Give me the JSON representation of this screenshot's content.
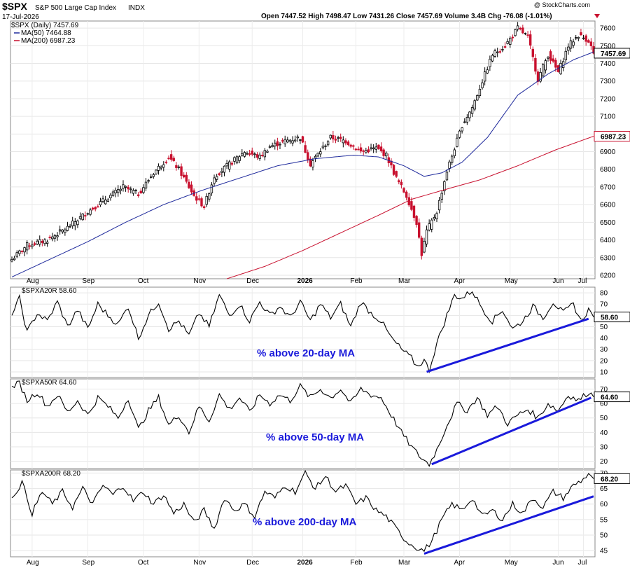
{
  "header": {
    "symbol": "$SPX",
    "name": "S&P 500 Large Cap Index",
    "exchange": "INDX",
    "date": "17-Jul-2026",
    "watermark": "@ StockCharts.com",
    "ohlc_text": "Open 7447.52  High 7498.47  Low 7431.26  Close 7457.69  Volume 3.4B  Chg -76.08 (-1.01%)"
  },
  "colors": {
    "up": "#000000",
    "down": "#c8102e",
    "ma50": "#1f2a9c",
    "ma200": "#c8102e",
    "trendline": "#1a1adb",
    "annotation": "#1a1adb"
  },
  "x_axis": {
    "labels": [
      "Aug",
      "Sep",
      "Oct",
      "Nov",
      "Dec",
      "2026",
      "Feb",
      "Mar",
      "Apr",
      "May",
      "Jun",
      "Jul"
    ]
  },
  "chart_data": [
    {
      "type": "candlestick",
      "panel": "price",
      "legend": [
        "$SPX (Daily) 7457.69",
        "MA(50) 7464.88",
        "MA(200) 6987.23"
      ],
      "last_value_labels": {
        "close": "7457.69",
        "ma200": "6987.23"
      },
      "ylim": [
        6180,
        7640
      ],
      "y_ticks": [
        6200,
        6300,
        6400,
        6500,
        6600,
        6700,
        6800,
        6900,
        7000,
        7100,
        7200,
        7300,
        7400,
        7500,
        7600
      ],
      "close_anchors": [
        [
          0,
          6290
        ],
        [
          6,
          6370
        ],
        [
          14,
          6400
        ],
        [
          22,
          6470
        ],
        [
          30,
          6560
        ],
        [
          38,
          6640
        ],
        [
          44,
          6700
        ],
        [
          50,
          6660
        ],
        [
          56,
          6780
        ],
        [
          62,
          6870
        ],
        [
          66,
          6800
        ],
        [
          72,
          6650
        ],
        [
          76,
          6590
        ],
        [
          80,
          6760
        ],
        [
          86,
          6830
        ],
        [
          92,
          6900
        ],
        [
          98,
          6870
        ],
        [
          102,
          6930
        ],
        [
          108,
          6960
        ],
        [
          114,
          6980
        ],
        [
          118,
          6830
        ],
        [
          126,
          6980
        ],
        [
          132,
          6960
        ],
        [
          138,
          6900
        ],
        [
          144,
          6920
        ],
        [
          148,
          6880
        ],
        [
          152,
          6750
        ],
        [
          156,
          6650
        ],
        [
          160,
          6500
        ],
        [
          162,
          6320
        ],
        [
          164,
          6450
        ],
        [
          168,
          6560
        ],
        [
          172,
          6790
        ],
        [
          178,
          7050
        ],
        [
          182,
          7150
        ],
        [
          186,
          7300
        ],
        [
          190,
          7450
        ],
        [
          195,
          7500
        ],
        [
          200,
          7600
        ],
        [
          204,
          7550
        ],
        [
          208,
          7310
        ],
        [
          212,
          7450
        ],
        [
          216,
          7350
        ],
        [
          220,
          7500
        ],
        [
          224,
          7560
        ],
        [
          228,
          7530
        ],
        [
          230,
          7457.69
        ]
      ],
      "ma50_anchors": [
        [
          0,
          6190
        ],
        [
          15,
          6290
        ],
        [
          30,
          6390
        ],
        [
          45,
          6500
        ],
        [
          60,
          6600
        ],
        [
          75,
          6680
        ],
        [
          90,
          6750
        ],
        [
          105,
          6820
        ],
        [
          120,
          6860
        ],
        [
          135,
          6880
        ],
        [
          145,
          6870
        ],
        [
          155,
          6820
        ],
        [
          163,
          6760
        ],
        [
          170,
          6780
        ],
        [
          178,
          6840
        ],
        [
          188,
          6980
        ],
        [
          200,
          7220
        ],
        [
          212,
          7340
        ],
        [
          222,
          7420
        ],
        [
          230,
          7464.88
        ]
      ],
      "ma200_anchors": [
        [
          85,
          6180
        ],
        [
          100,
          6250
        ],
        [
          115,
          6340
        ],
        [
          130,
          6440
        ],
        [
          145,
          6540
        ],
        [
          158,
          6630
        ],
        [
          170,
          6680
        ],
        [
          185,
          6740
        ],
        [
          200,
          6820
        ],
        [
          215,
          6910
        ],
        [
          230,
          6987.23
        ]
      ]
    },
    {
      "type": "line",
      "panel": "SPXA20R",
      "label": "$SPXA20R 58.60",
      "last_value": "58.60",
      "ylim": [
        5,
        85
      ],
      "y_ticks": [
        10,
        20,
        30,
        40,
        50,
        60,
        70,
        80
      ],
      "anchors": [
        [
          0,
          60
        ],
        [
          3,
          75
        ],
        [
          6,
          45
        ],
        [
          10,
          62
        ],
        [
          14,
          55
        ],
        [
          18,
          72
        ],
        [
          22,
          50
        ],
        [
          26,
          65
        ],
        [
          30,
          48
        ],
        [
          34,
          70
        ],
        [
          38,
          60
        ],
        [
          42,
          52
        ],
        [
          46,
          68
        ],
        [
          50,
          40
        ],
        [
          54,
          60
        ],
        [
          58,
          72
        ],
        [
          62,
          48
        ],
        [
          66,
          55
        ],
        [
          70,
          42
        ],
        [
          74,
          62
        ],
        [
          78,
          50
        ],
        [
          82,
          78
        ],
        [
          86,
          60
        ],
        [
          90,
          70
        ],
        [
          94,
          55
        ],
        [
          98,
          72
        ],
        [
          102,
          60
        ],
        [
          106,
          68
        ],
        [
          110,
          58
        ],
        [
          114,
          72
        ],
        [
          118,
          55
        ],
        [
          122,
          70
        ],
        [
          126,
          58
        ],
        [
          130,
          70
        ],
        [
          134,
          50
        ],
        [
          138,
          72
        ],
        [
          142,
          62
        ],
        [
          146,
          55
        ],
        [
          150,
          40
        ],
        [
          154,
          30
        ],
        [
          158,
          22
        ],
        [
          160,
          15
        ],
        [
          163,
          20
        ],
        [
          165,
          12
        ],
        [
          168,
          35
        ],
        [
          172,
          60
        ],
        [
          175,
          78
        ],
        [
          178,
          75
        ],
        [
          182,
          82
        ],
        [
          185,
          70
        ],
        [
          188,
          60
        ],
        [
          190,
          55
        ],
        [
          194,
          65
        ],
        [
          198,
          48
        ],
        [
          202,
          55
        ],
        [
          206,
          68
        ],
        [
          210,
          58
        ],
        [
          214,
          72
        ],
        [
          218,
          62
        ],
        [
          222,
          70
        ],
        [
          225,
          55
        ],
        [
          228,
          65
        ],
        [
          230,
          58.6
        ]
      ],
      "trendline_data": [
        [
          164,
          10
        ],
        [
          228,
          57
        ]
      ]
    },
    {
      "type": "line",
      "panel": "SPXA50R",
      "label": "$SPXA50R 64.60",
      "last_value": "64.60",
      "ylim": [
        15,
        77
      ],
      "y_ticks": [
        20,
        30,
        40,
        50,
        60,
        70
      ],
      "anchors": [
        [
          0,
          72
        ],
        [
          3,
          74
        ],
        [
          6,
          62
        ],
        [
          10,
          68
        ],
        [
          14,
          58
        ],
        [
          18,
          66
        ],
        [
          22,
          54
        ],
        [
          26,
          62
        ],
        [
          30,
          52
        ],
        [
          34,
          64
        ],
        [
          38,
          58
        ],
        [
          42,
          50
        ],
        [
          46,
          64
        ],
        [
          50,
          42
        ],
        [
          54,
          55
        ],
        [
          58,
          64
        ],
        [
          62,
          45
        ],
        [
          66,
          52
        ],
        [
          70,
          40
        ],
        [
          74,
          58
        ],
        [
          78,
          48
        ],
        [
          82,
          66
        ],
        [
          86,
          56
        ],
        [
          90,
          64
        ],
        [
          94,
          54
        ],
        [
          98,
          66
        ],
        [
          102,
          60
        ],
        [
          106,
          66
        ],
        [
          110,
          62
        ],
        [
          114,
          72
        ],
        [
          118,
          64
        ],
        [
          122,
          70
        ],
        [
          126,
          64
        ],
        [
          130,
          70
        ],
        [
          134,
          60
        ],
        [
          138,
          70
        ],
        [
          142,
          66
        ],
        [
          146,
          64
        ],
        [
          150,
          52
        ],
        [
          154,
          40
        ],
        [
          158,
          30
        ],
        [
          162,
          22
        ],
        [
          165,
          18
        ],
        [
          168,
          28
        ],
        [
          172,
          45
        ],
        [
          176,
          60
        ],
        [
          180,
          55
        ],
        [
          184,
          64
        ],
        [
          188,
          52
        ],
        [
          192,
          58
        ],
        [
          196,
          46
        ],
        [
          200,
          52
        ],
        [
          204,
          56
        ],
        [
          208,
          50
        ],
        [
          212,
          60
        ],
        [
          216,
          55
        ],
        [
          220,
          66
        ],
        [
          224,
          62
        ],
        [
          228,
          68
        ],
        [
          230,
          64.6
        ]
      ],
      "trendline_data": [
        [
          166,
          18
        ],
        [
          229,
          64
        ]
      ]
    },
    {
      "type": "line",
      "panel": "SPXA200R",
      "label": "$SPXA200R 68.20",
      "last_value": "68.20",
      "ylim": [
        43,
        71
      ],
      "y_ticks": [
        45,
        50,
        55,
        60,
        65,
        70
      ],
      "anchors": [
        [
          0,
          62
        ],
        [
          4,
          67
        ],
        [
          8,
          57
        ],
        [
          12,
          64
        ],
        [
          16,
          60
        ],
        [
          20,
          64
        ],
        [
          24,
          59
        ],
        [
          28,
          65
        ],
        [
          32,
          60
        ],
        [
          36,
          66
        ],
        [
          40,
          63
        ],
        [
          44,
          66
        ],
        [
          48,
          61
        ],
        [
          52,
          64
        ],
        [
          56,
          60
        ],
        [
          60,
          63
        ],
        [
          64,
          57
        ],
        [
          68,
          60
        ],
        [
          72,
          54
        ],
        [
          76,
          58
        ],
        [
          80,
          52
        ],
        [
          84,
          62
        ],
        [
          88,
          58
        ],
        [
          92,
          60
        ],
        [
          96,
          56
        ],
        [
          100,
          64
        ],
        [
          104,
          62
        ],
        [
          108,
          66
        ],
        [
          112,
          64
        ],
        [
          116,
          70
        ],
        [
          120,
          65
        ],
        [
          124,
          69
        ],
        [
          128,
          64
        ],
        [
          132,
          66
        ],
        [
          136,
          60
        ],
        [
          140,
          62
        ],
        [
          144,
          58
        ],
        [
          148,
          56
        ],
        [
          152,
          52
        ],
        [
          156,
          48
        ],
        [
          160,
          46
        ],
        [
          163,
          45
        ],
        [
          166,
          48
        ],
        [
          170,
          55
        ],
        [
          174,
          60
        ],
        [
          178,
          58
        ],
        [
          182,
          62
        ],
        [
          186,
          56
        ],
        [
          190,
          58
        ],
        [
          194,
          55
        ],
        [
          198,
          60
        ],
        [
          202,
          57
        ],
        [
          206,
          62
        ],
        [
          210,
          59
        ],
        [
          214,
          64
        ],
        [
          218,
          62
        ],
        [
          222,
          66
        ],
        [
          226,
          68
        ],
        [
          228,
          70
        ],
        [
          230,
          68.2
        ]
      ],
      "trendline_data": [
        [
          163,
          44
        ],
        [
          230,
          62.5
        ]
      ]
    }
  ],
  "annotations": [
    {
      "panel": "SPXA20R",
      "text": "% above 20-day MA"
    },
    {
      "panel": "SPXA50R",
      "text": "% above 50-day MA"
    },
    {
      "panel": "SPXA200R",
      "text": "% above 200-day MA"
    }
  ]
}
